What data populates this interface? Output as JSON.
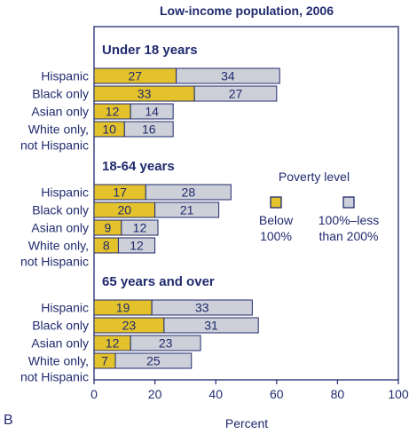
{
  "chart_data": {
    "type": "bar",
    "stacked": true,
    "orientation": "horizontal",
    "title": "Low-income population, 2006",
    "xlabel": "Percent",
    "xlim": [
      0,
      100
    ],
    "xticks": [
      0,
      20,
      40,
      60,
      80,
      100
    ],
    "panel_label": "B",
    "legend": {
      "title": "Poverty level",
      "position": "right",
      "entries": [
        {
          "label_line1": "Below",
          "label_line2": "100%"
        },
        {
          "label_line1": "100%–less",
          "label_line2": "than 200%"
        }
      ]
    },
    "colors": {
      "below_100": "#e3c22c",
      "between_100_200": "#cdd0d8",
      "ink": "#1f2a6e"
    },
    "groups": [
      {
        "name": "Under 18 years",
        "categories": [
          {
            "line1": "Hispanic",
            "line2": "",
            "below_100": 27,
            "between_100_200": 34
          },
          {
            "line1": "Black only",
            "line2": "",
            "below_100": 33,
            "between_100_200": 27
          },
          {
            "line1": "Asian only",
            "line2": "",
            "below_100": 12,
            "between_100_200": 14
          },
          {
            "line1": "White only,",
            "line2": "not Hispanic",
            "below_100": 10,
            "between_100_200": 16
          }
        ]
      },
      {
        "name": "18-64 years",
        "categories": [
          {
            "line1": "Hispanic",
            "line2": "",
            "below_100": 17,
            "between_100_200": 28
          },
          {
            "line1": "Black only",
            "line2": "",
            "below_100": 20,
            "between_100_200": 21
          },
          {
            "line1": "Asian only",
            "line2": "",
            "below_100": 9,
            "between_100_200": 12
          },
          {
            "line1": "White only,",
            "line2": "not Hispanic",
            "below_100": 8,
            "between_100_200": 12
          }
        ]
      },
      {
        "name": "65 years and over",
        "categories": [
          {
            "line1": "Hispanic",
            "line2": "",
            "below_100": 19,
            "between_100_200": 33
          },
          {
            "line1": "Black only",
            "line2": "",
            "below_100": 23,
            "between_100_200": 31
          },
          {
            "line1": "Asian only",
            "line2": "",
            "below_100": 12,
            "between_100_200": 23
          },
          {
            "line1": "White only,",
            "line2": "not Hispanic",
            "below_100": 7,
            "between_100_200": 25
          }
        ]
      }
    ]
  }
}
